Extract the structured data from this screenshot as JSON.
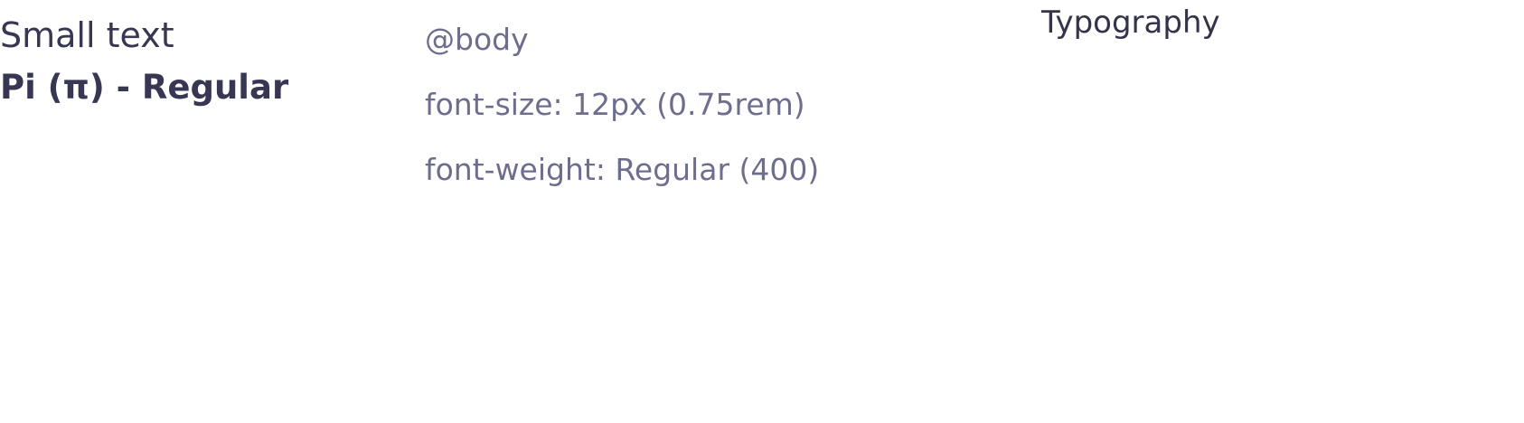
{
  "category": "Typography",
  "spec": {
    "name": "Small text",
    "title": "Pi (π) - Regular",
    "token": "@body",
    "font_size": "font-size: 12px (0.75rem)",
    "font_weight": "font-weight: Regular (400)"
  },
  "colors": {
    "heading": "#373754",
    "muted": "#6d6d8e",
    "background": "#ffffff"
  }
}
